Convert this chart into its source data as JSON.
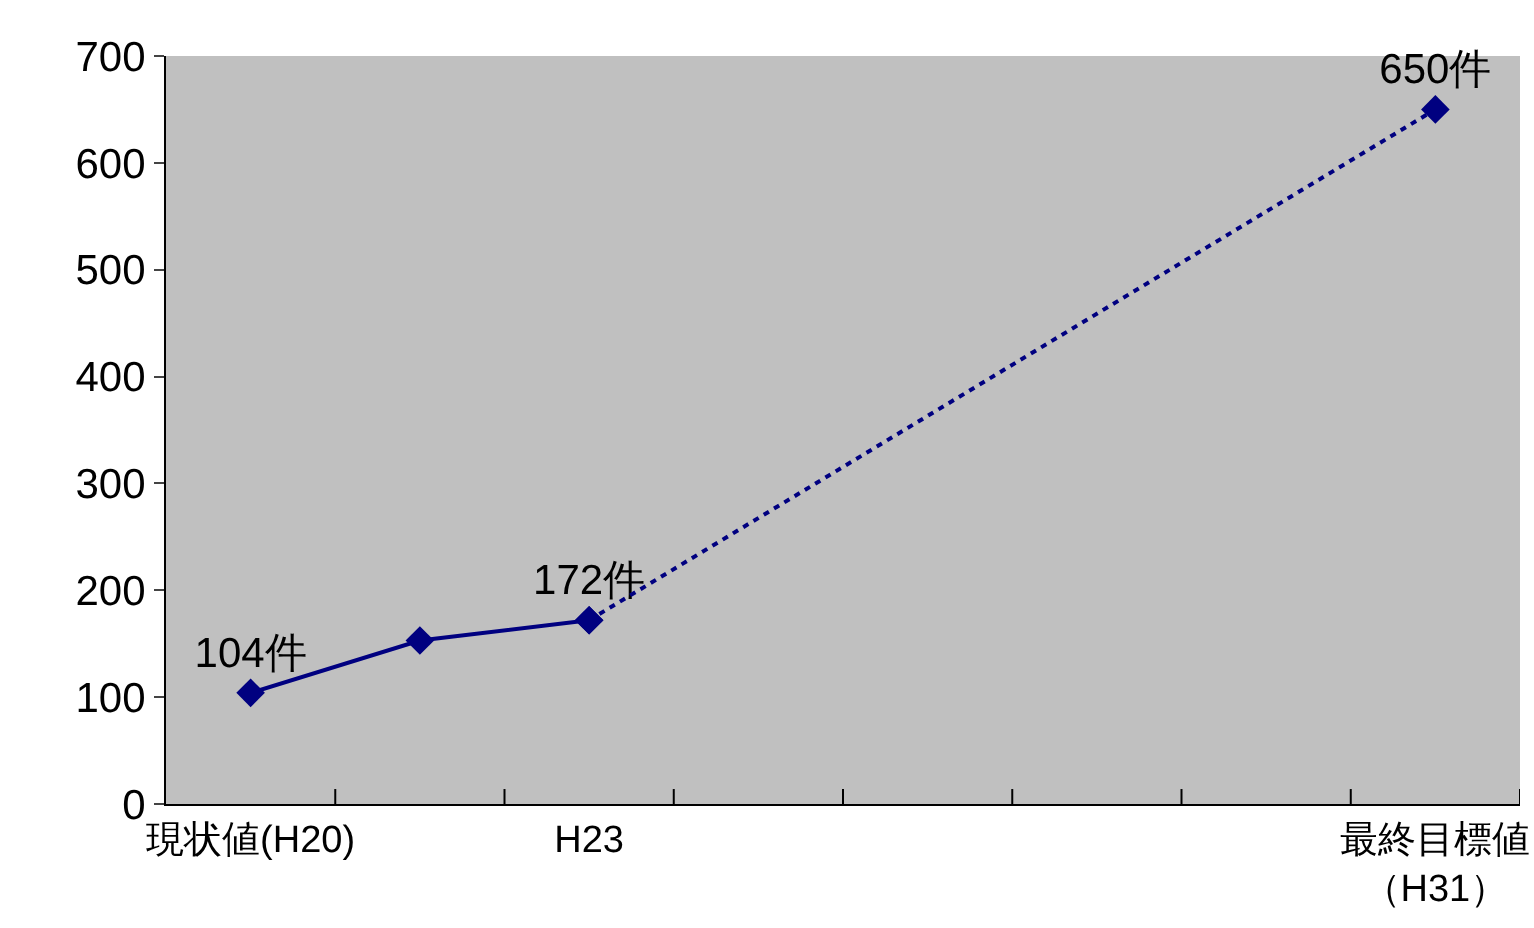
{
  "chart_data": {
    "type": "line",
    "categories": [
      "現状値(H20)",
      null,
      "H23",
      null,
      null,
      null,
      null,
      "最終目標値（H31）"
    ],
    "series": [
      {
        "color": "#000080",
        "line_style": "solid",
        "values": [
          104,
          153,
          172,
          null,
          null,
          null,
          null,
          null
        ],
        "value_labels": [
          "104件",
          null,
          "172件",
          null,
          null,
          null,
          null,
          null
        ]
      },
      {
        "color": "#000080",
        "line_style": "dotted",
        "values": [
          null,
          null,
          172,
          null,
          null,
          null,
          null,
          650
        ],
        "value_labels": [
          null,
          null,
          null,
          null,
          null,
          null,
          null,
          "650件"
        ]
      }
    ],
    "ylim": [
      0,
      700
    ],
    "yticks": [
      0,
      100,
      200,
      300,
      400,
      500,
      600,
      700
    ],
    "grid": false,
    "marker": "diamond"
  }
}
